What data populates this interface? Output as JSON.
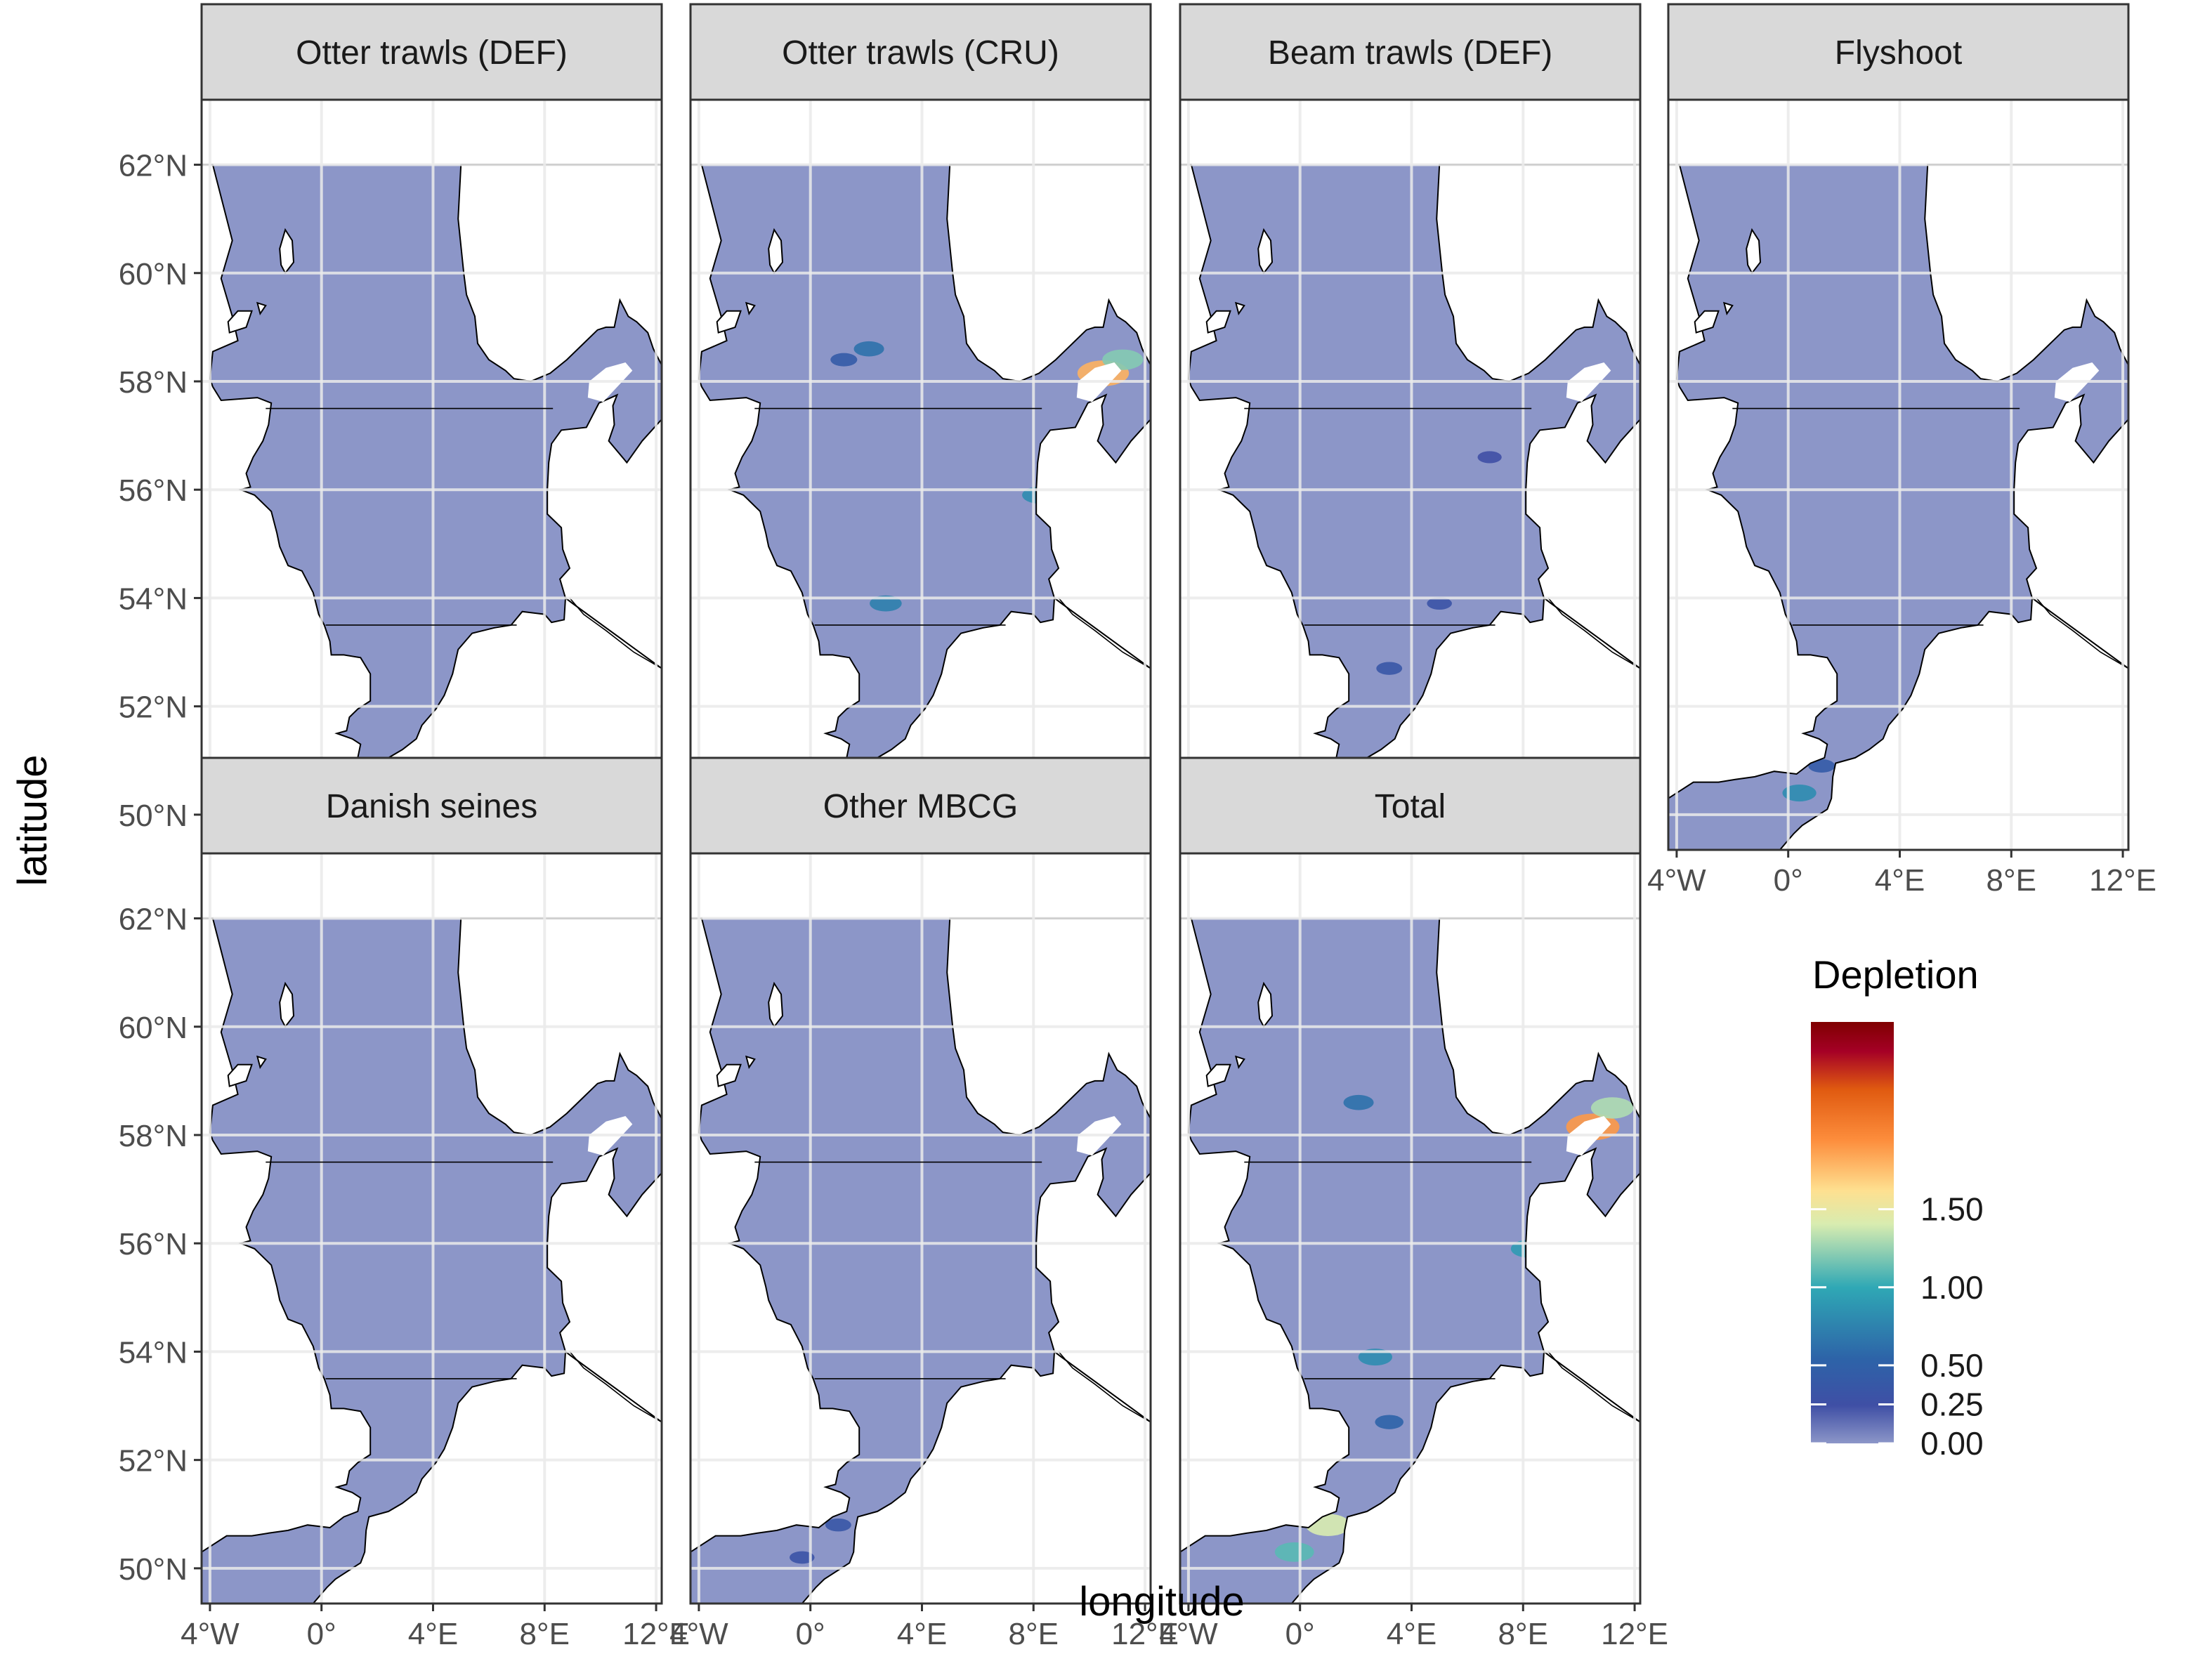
{
  "figure": {
    "xlabel": "longitude",
    "ylabel": "latitude",
    "lat_ticks": [
      "50°N",
      "52°N",
      "54°N",
      "56°N",
      "58°N",
      "60°N",
      "62°N"
    ],
    "lon_ticks": [
      "4°W",
      "0°",
      "4°E",
      "8°E",
      "12°E"
    ],
    "lat_values": [
      50,
      52,
      54,
      56,
      58,
      60,
      62
    ],
    "lon_values": [
      -4,
      0,
      4,
      8,
      12
    ],
    "lat_range": [
      49.35,
      63.2
    ],
    "lon_range": [
      -4.3,
      12.2
    ],
    "panel_lat_range": [
      49.35,
      62
    ]
  },
  "panels": [
    {
      "title": "Otter trawls (DEF)",
      "hotspots": []
    },
    {
      "title": "Otter trawls (CRU)",
      "hotspots": [
        {
          "lon": 10.5,
          "lat": 58.15,
          "value": 1.8
        },
        {
          "lon": 11.2,
          "lat": 58.4,
          "value": 1.2
        },
        {
          "lon": 8.2,
          "lat": 55.9,
          "value": 0.8
        },
        {
          "lon": 2.1,
          "lat": 58.6,
          "value": 0.6
        },
        {
          "lon": 2.7,
          "lat": 53.9,
          "value": 0.7
        },
        {
          "lon": 1.2,
          "lat": 58.4,
          "value": 0.4
        }
      ]
    },
    {
      "title": "Beam trawls (DEF)",
      "hotspots": [
        {
          "lon": 3.2,
          "lat": 52.7,
          "value": 0.35
        },
        {
          "lon": 5.0,
          "lat": 53.9,
          "value": 0.3
        },
        {
          "lon": 6.8,
          "lat": 56.6,
          "value": 0.25
        }
      ]
    },
    {
      "title": "Flyshoot",
      "hotspots": [
        {
          "lon": 0.4,
          "lat": 50.4,
          "value": 0.8
        },
        {
          "lon": 1.2,
          "lat": 50.9,
          "value": 0.4
        }
      ]
    },
    {
      "title": "Danish seines",
      "hotspots": []
    },
    {
      "title": "Other MBCG",
      "hotspots": [
        {
          "lon": -0.3,
          "lat": 50.2,
          "value": 0.3
        },
        {
          "lon": 1.0,
          "lat": 50.8,
          "value": 0.35
        }
      ]
    },
    {
      "title": "Total",
      "hotspots": [
        {
          "lon": 10.5,
          "lat": 58.15,
          "value": 1.9
        },
        {
          "lon": 11.2,
          "lat": 58.5,
          "value": 1.3
        },
        {
          "lon": 8.2,
          "lat": 55.9,
          "value": 0.9
        },
        {
          "lon": 1.0,
          "lat": 50.8,
          "value": 1.4
        },
        {
          "lon": -0.2,
          "lat": 50.3,
          "value": 1.1
        },
        {
          "lon": 2.7,
          "lat": 53.9,
          "value": 0.8
        },
        {
          "lon": 2.1,
          "lat": 58.6,
          "value": 0.6
        },
        {
          "lon": 3.2,
          "lat": 52.7,
          "value": 0.5
        }
      ]
    }
  ],
  "legend": {
    "title": "Depletion",
    "ticks": [
      "1.50",
      "1.00",
      "0.50",
      "0.25",
      "0.00"
    ],
    "tick_values": [
      1.5,
      1.0,
      0.5,
      0.25,
      0.0
    ],
    "scale_max": 2.7
  },
  "colors": {
    "sea": "#8c96c8",
    "land": "#ffffff",
    "coast": "#000000",
    "strip": "#d9d9d9",
    "grid": "#ebebeb",
    "legend_scale": [
      "#8c96c8",
      "#3f4fa5",
      "#2fa8b5",
      "#d8ecb0",
      "#fee090",
      "#fd8d3c",
      "#e05a10",
      "#a50026",
      "#7f0000"
    ]
  }
}
